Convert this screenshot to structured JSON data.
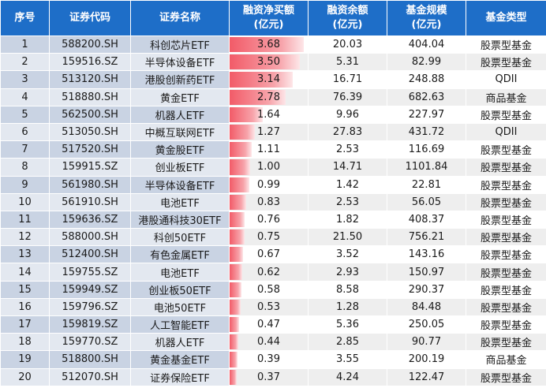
{
  "table": {
    "header": [
      "序号",
      "证券代码",
      "证券名称",
      "融资净买额\n(亿元)",
      "融资余额\n(亿元)",
      "基金规模\n(亿元)",
      "基金类型"
    ],
    "rows": [
      [
        "1",
        "588200.SH",
        "科创芯片ETF",
        "3.68",
        "20.03",
        "404.04",
        "股票型基金"
      ],
      [
        "2",
        "159516.SZ",
        "半导体设备ETF",
        "3.50",
        "5.31",
        "82.99",
        "股票型基金"
      ],
      [
        "3",
        "513120.SH",
        "港股创新药ETF",
        "3.14",
        "16.71",
        "248.88",
        "QDII"
      ],
      [
        "4",
        "518880.SH",
        "黄金ETF",
        "2.78",
        "76.39",
        "682.63",
        "商品基金"
      ],
      [
        "5",
        "562500.SH",
        "机器人ETF",
        "1.64",
        "9.96",
        "227.97",
        "股票型基金"
      ],
      [
        "6",
        "513050.SH",
        "中概互联网ETF",
        "1.27",
        "27.83",
        "431.72",
        "QDII"
      ],
      [
        "7",
        "517520.SH",
        "黄金股ETF",
        "1.11",
        "2.53",
        "116.69",
        "股票型基金"
      ],
      [
        "8",
        "159915.SZ",
        "创业板ETF",
        "1.00",
        "14.71",
        "1101.84",
        "股票型基金"
      ],
      [
        "9",
        "561980.SH",
        "半导体设备ETF",
        "0.99",
        "1.42",
        "22.81",
        "股票型基金"
      ],
      [
        "10",
        "561910.SH",
        "电池ETF",
        "0.83",
        "2.53",
        "56.05",
        "股票型基金"
      ],
      [
        "11",
        "159636.SZ",
        "港股通科技30ETF",
        "0.76",
        "1.82",
        "408.37",
        "股票型基金"
      ],
      [
        "12",
        "588000.SH",
        "科创50ETF",
        "0.75",
        "21.50",
        "756.21",
        "股票型基金"
      ],
      [
        "13",
        "512400.SH",
        "有色金属ETF",
        "0.67",
        "3.52",
        "143.16",
        "股票型基金"
      ],
      [
        "14",
        "159755.SZ",
        "电池ETF",
        "0.62",
        "2.93",
        "150.97",
        "股票型基金"
      ],
      [
        "15",
        "159949.SZ",
        "创业板50ETF",
        "0.58",
        "8.58",
        "290.37",
        "股票型基金"
      ],
      [
        "16",
        "159796.SZ",
        "电池50ETF",
        "0.53",
        "1.28",
        "84.48",
        "股票型基金"
      ],
      [
        "17",
        "159819.SZ",
        "人工智能ETF",
        "0.47",
        "5.36",
        "250.05",
        "股票型基金"
      ],
      [
        "18",
        "159770.SZ",
        "机器人ETF",
        "0.44",
        "2.85",
        "90.77",
        "股票型基金"
      ],
      [
        "19",
        "518800.SH",
        "黄金基金ETF",
        "0.39",
        "3.55",
        "200.19",
        "商品基金"
      ],
      [
        "20",
        "512070.SH",
        "证券保险ETF",
        "0.37",
        "4.24",
        "122.47",
        "股票型基金"
      ]
    ]
  }
}
